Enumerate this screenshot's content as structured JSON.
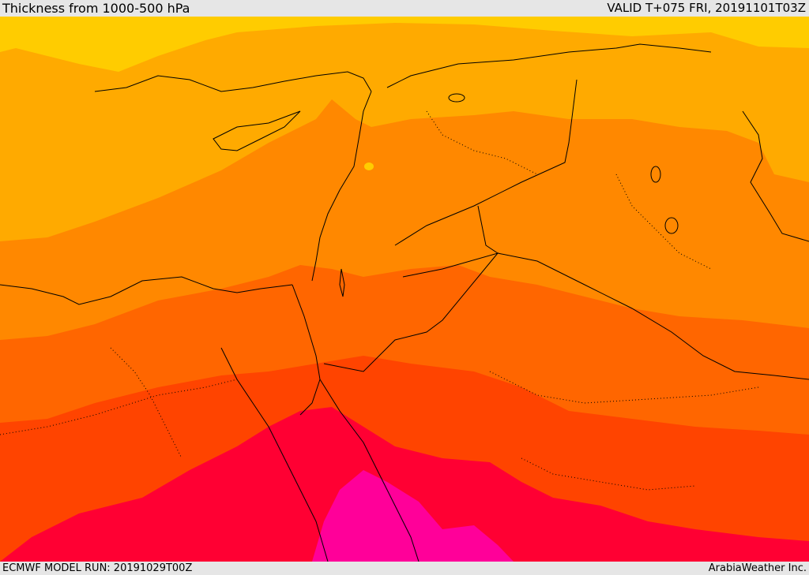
{
  "header": {
    "title": "Thickness from 1000-500 hPa",
    "valid_time": "VALID T+075 FRI, 20191101T03Z"
  },
  "footer": {
    "model_run": "ECMWF MODEL RUN: 20191029T00Z",
    "credit": "ArabiaWeather Inc."
  },
  "map": {
    "field": "1000-500 hPa thickness",
    "bands": [
      {
        "name": "band-1",
        "color": "#ffcc00"
      },
      {
        "name": "band-2",
        "color": "#ffaa00"
      },
      {
        "name": "band-3",
        "color": "#ff8800"
      },
      {
        "name": "band-4",
        "color": "#ff6600"
      },
      {
        "name": "band-5",
        "color": "#ff4400"
      },
      {
        "name": "band-6",
        "color": "#ff0033"
      },
      {
        "name": "band-7",
        "color": "#ff0099"
      }
    ],
    "boundary_color": "#000000"
  }
}
